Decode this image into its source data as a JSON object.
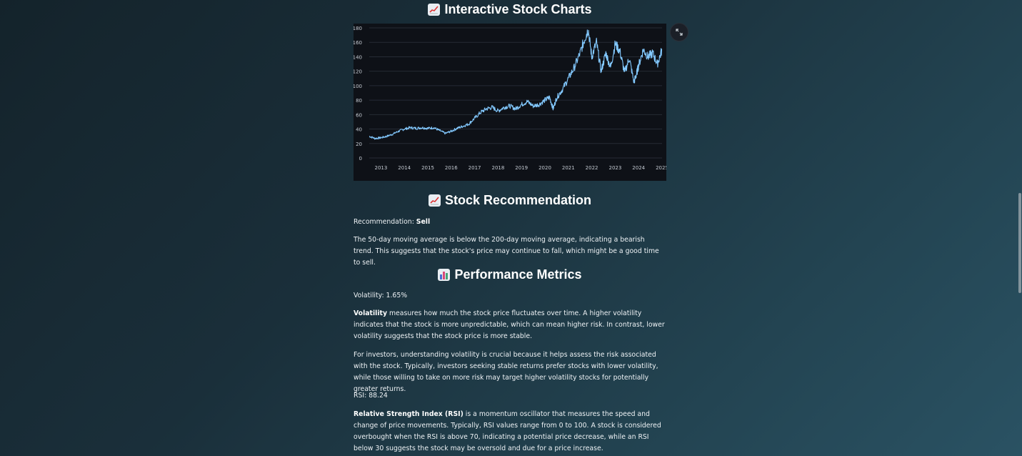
{
  "sections": {
    "charts_title": "Interactive Stock Charts",
    "recommendation_title": "Stock Recommendation",
    "performance_title": "Performance Metrics"
  },
  "recommendation": {
    "label": "Recommendation:",
    "value": "Sell",
    "explanation": "The 50-day moving average is below the 200-day moving average, indicating a bearish trend. This suggests that the stock's price may continue to fall, which might be a good time to sell."
  },
  "metrics": {
    "volatility_line": "Volatility: 1.65%",
    "volatility_term": "Volatility",
    "volatility_desc": " measures how much the stock price fluctuates over time. A higher volatility indicates that the stock is more unpredictable, which can mean higher risk. In contrast, lower volatility suggests that the stock price is more stable.",
    "volatility_investors": "For investors, understanding volatility is crucial because it helps assess the risk associated with the stock. Typically, investors seeking stable returns prefer stocks with lower volatility, while those willing to take on more risk may target higher volatility stocks for potentially greater returns.",
    "rsi_line": "RSI: 88.24",
    "rsi_term": "Relative Strength Index (RSI)",
    "rsi_desc": " is a momentum oscillator that measures the speed and change of price movements. Typically, RSI values range from 0 to 100. A stock is considered overbought when the RSI is above 70, indicating a potential price decrease, while an RSI below 30 suggests the stock may be oversold and due for a price increase."
  },
  "icons": {
    "charts_heading": "chart-increasing-icon",
    "recommendation_heading": "chart-increasing-icon",
    "performance_heading": "bar-chart-icon",
    "expand": "fullscreen-icon"
  },
  "chart_data": {
    "type": "line",
    "series_color": "#83c9ff",
    "y_ticks": [
      "0",
      "20",
      "40",
      "60",
      "80",
      "100",
      "120",
      "140",
      "160",
      "180"
    ],
    "x_ticks": [
      "2013",
      "2014",
      "2015",
      "2016",
      "2017",
      "2018",
      "2019",
      "2020",
      "2021",
      "2022",
      "2023",
      "2024",
      "2025"
    ],
    "ylim": [
      0,
      180
    ],
    "xlim": [
      2012.5,
      2025
    ],
    "grid": true,
    "x": [
      2012.5,
      2012.75,
      2013.0,
      2013.25,
      2013.5,
      2013.75,
      2014.0,
      2014.25,
      2014.5,
      2014.75,
      2015.0,
      2015.25,
      2015.5,
      2015.75,
      2016.0,
      2016.25,
      2016.5,
      2016.75,
      2017.0,
      2017.25,
      2017.5,
      2017.75,
      2018.0,
      2018.25,
      2018.5,
      2018.75,
      2019.0,
      2019.25,
      2019.5,
      2019.75,
      2020.0,
      2020.2,
      2020.35,
      2020.5,
      2020.75,
      2021.0,
      2021.25,
      2021.5,
      2021.7,
      2021.85,
      2022.0,
      2022.2,
      2022.4,
      2022.6,
      2022.8,
      2023.0,
      2023.2,
      2023.4,
      2023.6,
      2023.8,
      2023.9,
      2024.0,
      2024.2,
      2024.4,
      2024.6,
      2024.8,
      2025.0
    ],
    "y": [
      30,
      27,
      28,
      30,
      33,
      37,
      40,
      42,
      41,
      42,
      41,
      42,
      38,
      34,
      37,
      41,
      44,
      47,
      55,
      63,
      68,
      70,
      65,
      70,
      72,
      68,
      74,
      78,
      72,
      74,
      80,
      84,
      68,
      83,
      95,
      110,
      125,
      145,
      165,
      178,
      140,
      160,
      120,
      145,
      125,
      158,
      148,
      118,
      138,
      105,
      115,
      128,
      150,
      140,
      145,
      130,
      150
    ]
  }
}
